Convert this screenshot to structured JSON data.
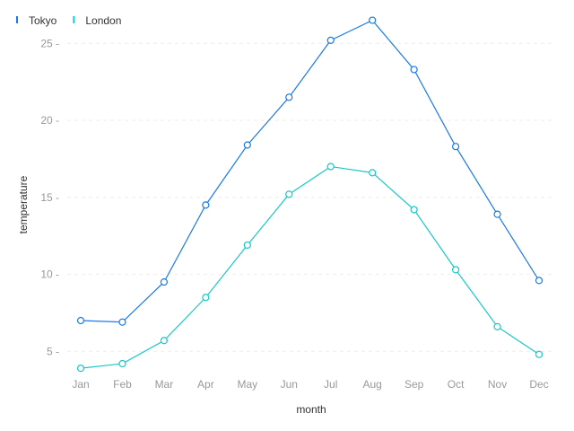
{
  "chart_data": {
    "type": "line",
    "title": "",
    "xlabel": "month",
    "ylabel": "temperature",
    "categories": [
      "Jan",
      "Feb",
      "Mar",
      "Apr",
      "May",
      "Jun",
      "Jul",
      "Aug",
      "Sep",
      "Oct",
      "Nov",
      "Dec"
    ],
    "ylim": [
      3.5,
      27
    ],
    "yticks": [
      5,
      10,
      15,
      20,
      25
    ],
    "grid": true,
    "legend_position": "top-left",
    "series": [
      {
        "name": "Tokyo",
        "color": "#1a7ae6",
        "values": [
          7.0,
          6.9,
          9.5,
          14.5,
          18.4,
          21.5,
          25.2,
          26.5,
          23.3,
          18.3,
          13.9,
          9.6
        ]
      },
      {
        "name": "London",
        "color": "#16c8c8",
        "values": [
          3.9,
          4.2,
          5.7,
          8.5,
          11.9,
          15.2,
          17.0,
          16.6,
          14.2,
          10.3,
          6.6,
          4.8
        ]
      }
    ]
  }
}
